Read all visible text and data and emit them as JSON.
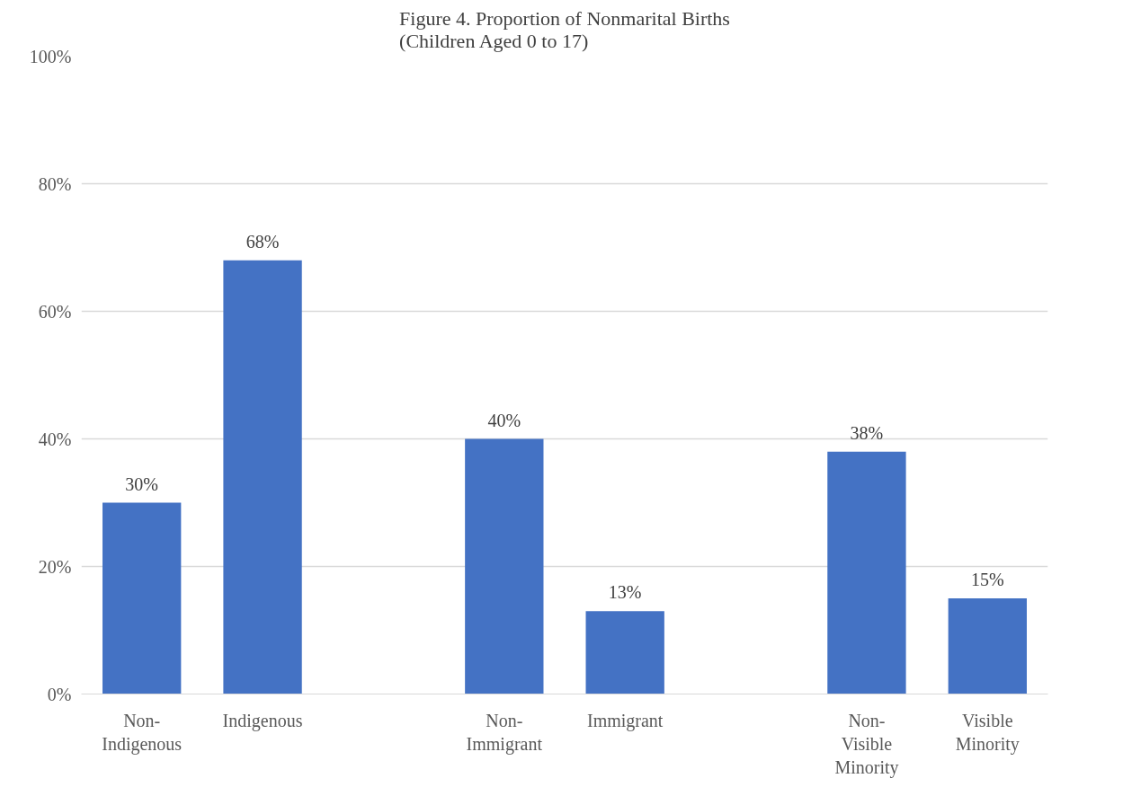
{
  "chart_data": {
    "type": "bar",
    "title": "Figure 4. Proportion of Nonmarital Births\n(Children Aged 0 to 17)",
    "categories": [
      "Non-\nIndigenous",
      "Indigenous",
      null,
      "Non-\nImmigrant",
      "Immigrant",
      null,
      "Non-\nVisible\nMinority",
      "Visible\nMinority"
    ],
    "values": [
      30,
      68,
      null,
      40,
      13,
      null,
      38,
      15
    ],
    "value_labels": [
      "30%",
      "68%",
      null,
      "40%",
      "13%",
      null,
      "38%",
      "15%"
    ],
    "color": "#4472c4",
    "ylim": [
      0,
      100
    ],
    "yticks": [
      {
        "value": 0,
        "label": "0%"
      },
      {
        "value": 20,
        "label": "20%"
      },
      {
        "value": 40,
        "label": "40%"
      },
      {
        "value": 60,
        "label": "60%"
      },
      {
        "value": 80,
        "label": "80%"
      },
      {
        "value": 100,
        "label": "100%"
      }
    ],
    "grid": "y"
  }
}
